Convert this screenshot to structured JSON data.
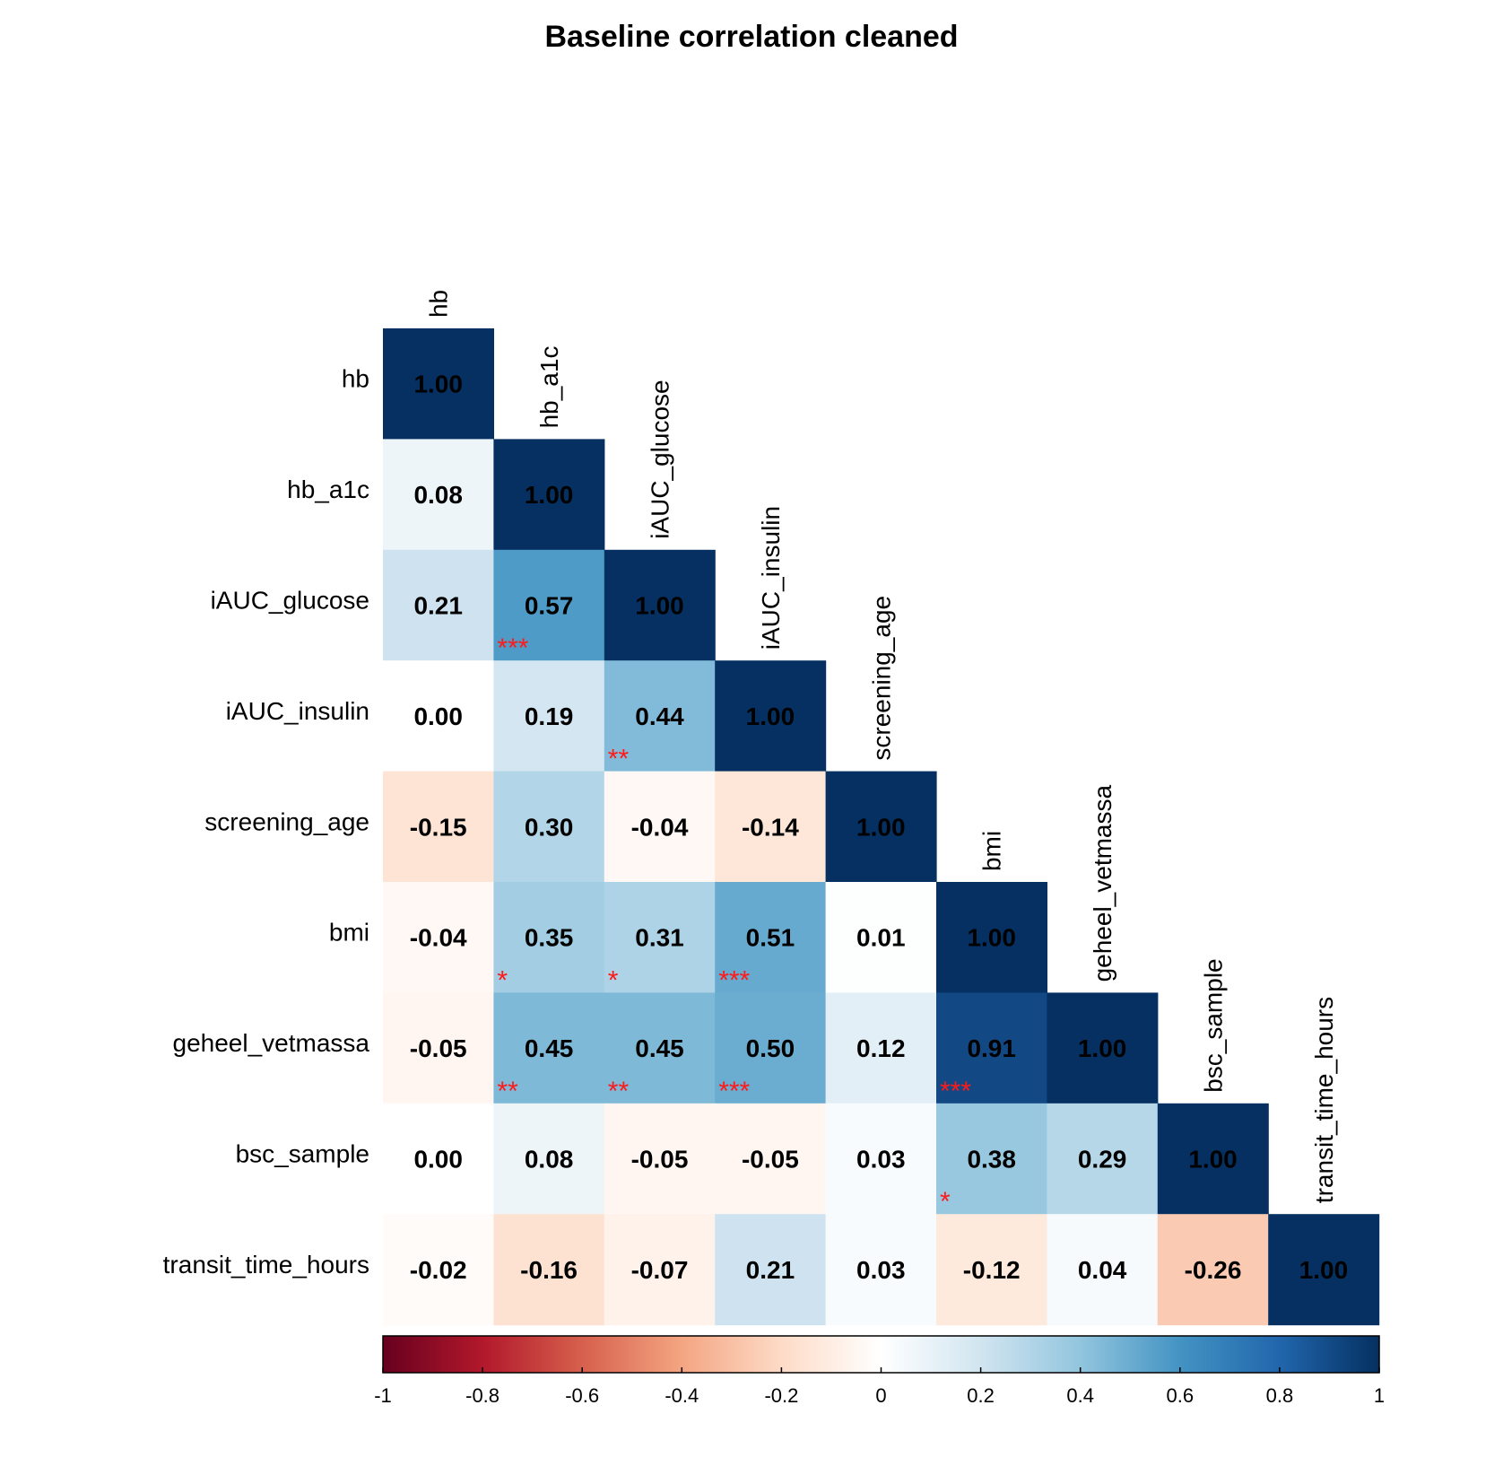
{
  "chart_data": {
    "type": "heatmap",
    "title": "Baseline correlation cleaned",
    "variables": [
      "hb",
      "hb_a1c",
      "iAUC_glucose",
      "iAUC_insulin",
      "screening_age",
      "bmi",
      "geheel_vetmassa",
      "bsc_sample",
      "transit_time_hours"
    ],
    "value_labels": [
      [
        "1.00"
      ],
      [
        "0.08",
        "1.00"
      ],
      [
        "0.21",
        "0.57",
        "1.00"
      ],
      [
        "0.00",
        "0.19",
        "0.44",
        "1.00"
      ],
      [
        "-0.15",
        "0.30",
        "-0.04",
        "-0.14",
        "1.00"
      ],
      [
        "-0.04",
        "0.35",
        "0.31",
        "0.51",
        "0.01",
        "1.00"
      ],
      [
        "-0.05",
        "0.45",
        "0.45",
        "0.50",
        "0.12",
        "0.91",
        "1.00"
      ],
      [
        "0.00",
        "0.08",
        "-0.05",
        "-0.05",
        "0.03",
        "0.38",
        "0.29",
        "1.00"
      ],
      [
        "-0.02",
        "-0.16",
        "-0.07",
        "0.21",
        "0.03",
        "-0.12",
        "0.04",
        "-0.26",
        "1.00"
      ]
    ],
    "significance": [
      [
        ""
      ],
      [
        "",
        ""
      ],
      [
        "",
        "***",
        ""
      ],
      [
        "",
        "",
        "**",
        ""
      ],
      [
        "",
        "",
        "",
        "",
        ""
      ],
      [
        "",
        "*",
        "*",
        "***",
        "",
        ""
      ],
      [
        "",
        "**",
        "**",
        "***",
        "",
        "***",
        ""
      ],
      [
        "",
        "",
        "",
        "",
        "",
        "*",
        "",
        ""
      ],
      [
        "",
        "",
        "",
        "",
        "",
        "",
        "",
        "",
        ""
      ]
    ],
    "colorbar": {
      "range": [
        -1,
        1
      ],
      "ticks": [
        "-1",
        "-0.8",
        "-0.6",
        "-0.4",
        "-0.2",
        "0",
        "0.2",
        "0.4",
        "0.6",
        "0.8",
        "1"
      ],
      "colors": [
        "#67001f",
        "#b2182b",
        "#d6604d",
        "#f4a582",
        "#fddbc7",
        "#ffffff",
        "#d1e5f0",
        "#92c5de",
        "#4393c3",
        "#2166ac",
        "#053061"
      ]
    }
  }
}
